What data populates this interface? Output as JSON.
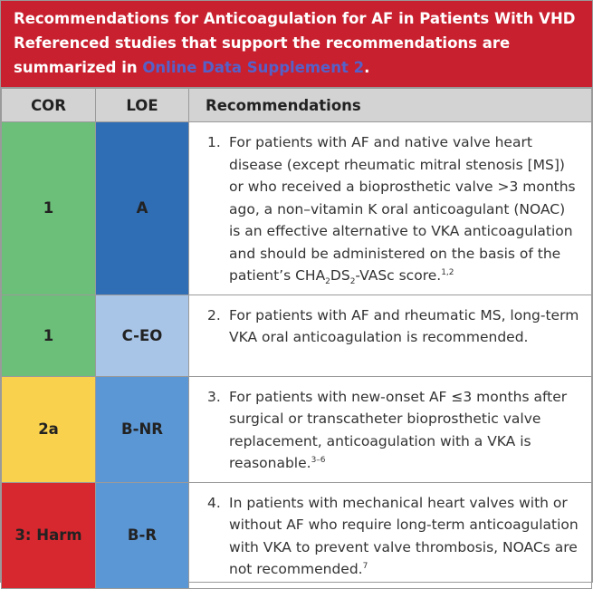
{
  "header": {
    "title": "Recommendations for Anticoagulation for AF in Patients With VHD",
    "subtitle": "Referenced studies that support the recommendations are summarized in ",
    "link": "Online Data Supplement 2",
    "subtitle_end": "."
  },
  "table": {
    "columns": [
      "COR",
      "LOE",
      "Recommendations"
    ],
    "rows": [
      {
        "cor": "1",
        "loe": "A",
        "number": "1.",
        "text": [
          "For patients with AF and native valve heart disease (except rheumatic mitral stenosis [MS]) or who received a bioprosthetic valve >3 months ago, a non–vitamin K oral anticoagulant (NOAC) is an effective alternative to VKA anticoagulation and should be administered on the basis of the patient’s CHA",
          "2",
          "DS",
          "2",
          "-VASc score.",
          "1,2"
        ]
      },
      {
        "cor": "1",
        "loe": "C-EO",
        "number": "2.",
        "text": [
          "For patients with AF and rheumatic MS, long-term VKA oral anticoagulation is recommended."
        ]
      },
      {
        "cor": "2a",
        "loe": "B-NR",
        "number": "3.",
        "text": [
          "For patients with new-onset AF ≤3 months after surgical or transcatheter bioprosthetic valve replacement, anticoagulation with a VKA is reasonable.",
          "3–6"
        ]
      },
      {
        "cor": "3: Harm",
        "loe": "B-R",
        "number": "4.",
        "text": [
          "In patients with mechanical heart valves with or without AF who require long-term anticoagulation with VKA to prevent valve thrombosis, NOACs are not recommended.",
          "7"
        ]
      }
    ]
  }
}
